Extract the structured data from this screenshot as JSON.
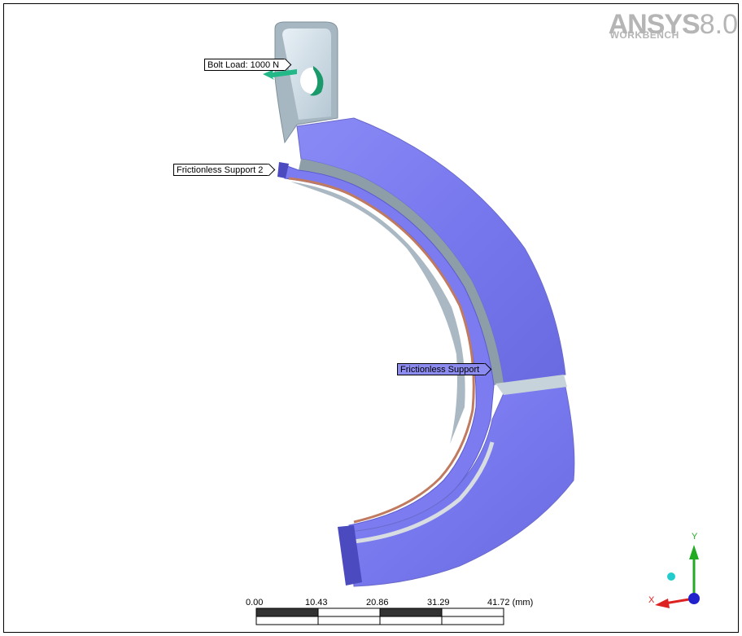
{
  "logo": {
    "main": "ANSYS",
    "version": "8.0",
    "sub": "WORKBENCH"
  },
  "callouts": {
    "bolt_load": "Bolt Load: 1000 N",
    "frictionless_support_2": "Frictionless Support 2",
    "frictionless_support": "Frictionless Support"
  },
  "scale_bar": {
    "ticks": [
      "0.00",
      "10.43",
      "20.86",
      "31.29",
      "41.72 (mm)"
    ]
  },
  "triad": {
    "x_label": "X",
    "y_label": "Y"
  },
  "colors": {
    "body_blue": "#7f7ff0",
    "body_blue_dark": "#5a5acc",
    "grey_metal": "#9aaab4",
    "contact_orange": "#c07a60",
    "bolt_green": "#1a9a6a",
    "axis_x": "#dd2222",
    "axis_y": "#22aa22",
    "axis_z": "#2222cc"
  }
}
